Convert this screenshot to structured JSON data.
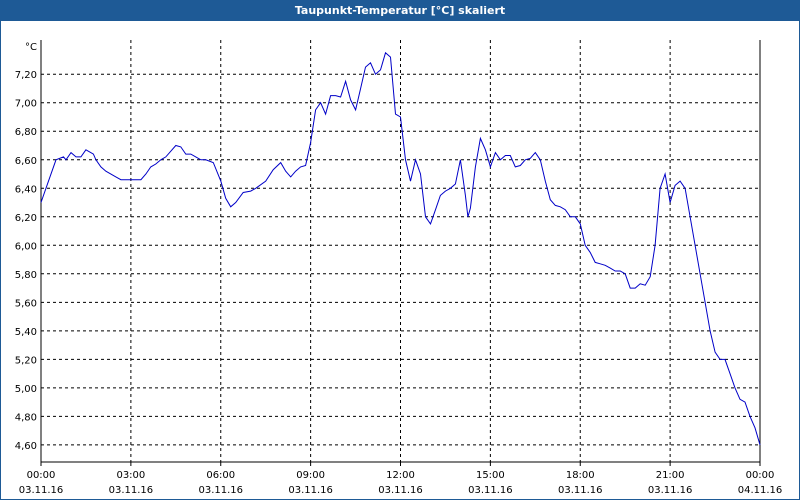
{
  "window": {
    "title": "Taupunkt-Temperatur [°C] skaliert"
  },
  "colors": {
    "title_bg": "#1e5a96",
    "line": "#0000c8",
    "grid": "#000000"
  },
  "chart_data": {
    "type": "line",
    "title": "Taupunkt-Temperatur [°C] skaliert",
    "ylabel": "°C",
    "xlabel": "",
    "x_range": [
      "2016-11-03 00:00",
      "2016-11-04 00:00"
    ],
    "ylim": [
      4.48,
      7.44
    ],
    "grid": true,
    "y_ticks": [
      "7,20",
      "7,00",
      "6,80",
      "6,60",
      "6,40",
      "6,20",
      "6,00",
      "5,80",
      "5,60",
      "5,40",
      "5,20",
      "5,00",
      "4,80",
      "4,60"
    ],
    "y_tick_values": [
      7.2,
      7.0,
      6.8,
      6.6,
      6.4,
      6.2,
      6.0,
      5.8,
      5.6,
      5.4,
      5.2,
      5.0,
      4.8,
      4.6
    ],
    "x_ticks": [
      {
        "time": "00:00",
        "date": "03.11.16"
      },
      {
        "time": "03:00",
        "date": "03.11.16"
      },
      {
        "time": "06:00",
        "date": "03.11.16"
      },
      {
        "time": "09:00",
        "date": "03.11.16"
      },
      {
        "time": "12:00",
        "date": "03.11.16"
      },
      {
        "time": "15:00",
        "date": "03.11.16"
      },
      {
        "time": "18:00",
        "date": "03.11.16"
      },
      {
        "time": "21:00",
        "date": "03.11.16"
      },
      {
        "time": "00:00",
        "date": "04.11.16"
      }
    ],
    "series": [
      {
        "x": [
          "00:00",
          "00:15",
          "00:30",
          "00:45",
          "00:50",
          "01:00",
          "01:10",
          "01:20",
          "01:30",
          "01:45",
          "01:50",
          "02:00",
          "02:10",
          "02:30",
          "02:40",
          "02:50",
          "03:00",
          "03:10",
          "03:20",
          "03:30",
          "03:40",
          "03:50",
          "04:00",
          "04:10",
          "04:20",
          "04:30",
          "04:40",
          "04:50",
          "05:00",
          "05:10",
          "05:20",
          "05:30",
          "05:45",
          "06:00",
          "06:10",
          "06:20",
          "06:30",
          "06:45",
          "07:00",
          "07:10",
          "07:30",
          "07:45",
          "08:00",
          "08:10",
          "08:20",
          "08:30",
          "08:40",
          "08:50",
          "09:00",
          "09:10",
          "09:20",
          "09:30",
          "09:40",
          "09:50",
          "10:00",
          "10:10",
          "10:20",
          "10:30",
          "10:40",
          "10:50",
          "11:00",
          "11:10",
          "11:20",
          "11:30",
          "11:40",
          "11:50",
          "12:00",
          "12:10",
          "12:20",
          "12:30",
          "12:40",
          "12:50",
          "13:00",
          "13:10",
          "13:20",
          "13:30",
          "13:40",
          "13:50",
          "14:00",
          "14:10",
          "14:15",
          "14:20",
          "14:30",
          "14:40",
          "14:50",
          "15:00",
          "15:10",
          "15:20",
          "15:30",
          "15:40",
          "15:50",
          "16:00",
          "16:10",
          "16:20",
          "16:30",
          "16:40",
          "16:50",
          "17:00",
          "17:10",
          "17:20",
          "17:30",
          "17:40",
          "17:50",
          "18:00",
          "18:10",
          "18:20",
          "18:30",
          "18:40",
          "18:50",
          "19:00",
          "19:10",
          "19:20",
          "19:30",
          "19:40",
          "19:50",
          "20:00",
          "20:10",
          "20:20",
          "20:30",
          "20:40",
          "20:50",
          "21:00",
          "21:10",
          "21:20",
          "21:30",
          "21:40",
          "21:50",
          "22:00",
          "22:10",
          "22:20",
          "22:30",
          "22:40",
          "22:50",
          "23:00",
          "23:10",
          "23:20",
          "23:30",
          "23:40",
          "23:50",
          "24:00"
        ],
        "values": [
          6.3,
          6.45,
          6.6,
          6.62,
          6.6,
          6.65,
          6.62,
          6.62,
          6.67,
          6.64,
          6.6,
          6.55,
          6.52,
          6.48,
          6.46,
          6.46,
          6.46,
          6.46,
          6.46,
          6.5,
          6.55,
          6.57,
          6.6,
          6.62,
          6.66,
          6.7,
          6.69,
          6.64,
          6.64,
          6.62,
          6.6,
          6.6,
          6.58,
          6.45,
          6.33,
          6.27,
          6.3,
          6.37,
          6.38,
          6.4,
          6.45,
          6.53,
          6.58,
          6.52,
          6.48,
          6.52,
          6.55,
          6.56,
          6.72,
          6.95,
          7.0,
          6.92,
          7.05,
          7.05,
          7.04,
          7.15,
          7.02,
          6.95,
          7.1,
          7.25,
          7.28,
          7.2,
          7.23,
          7.35,
          7.32,
          6.92,
          6.9,
          6.6,
          6.45,
          6.6,
          6.5,
          6.2,
          6.15,
          6.25,
          6.35,
          6.38,
          6.4,
          6.43,
          6.6,
          6.35,
          6.2,
          6.26,
          6.55,
          6.75,
          6.67,
          6.55,
          6.65,
          6.6,
          6.63,
          6.63,
          6.55,
          6.56,
          6.6,
          6.61,
          6.65,
          6.6,
          6.45,
          6.32,
          6.28,
          6.27,
          6.25,
          6.2,
          6.2,
          6.15,
          6.0,
          5.95,
          5.88,
          5.87,
          5.86,
          5.84,
          5.82,
          5.82,
          5.8,
          5.7,
          5.7,
          5.73,
          5.72,
          5.78,
          6.0,
          6.4,
          6.5,
          6.3,
          6.42,
          6.45,
          6.4,
          6.2,
          6.0,
          5.8,
          5.6,
          5.4,
          5.25,
          5.2,
          5.2,
          5.1,
          5.0,
          4.92,
          4.9,
          4.8,
          4.72,
          4.6
        ]
      }
    ]
  }
}
